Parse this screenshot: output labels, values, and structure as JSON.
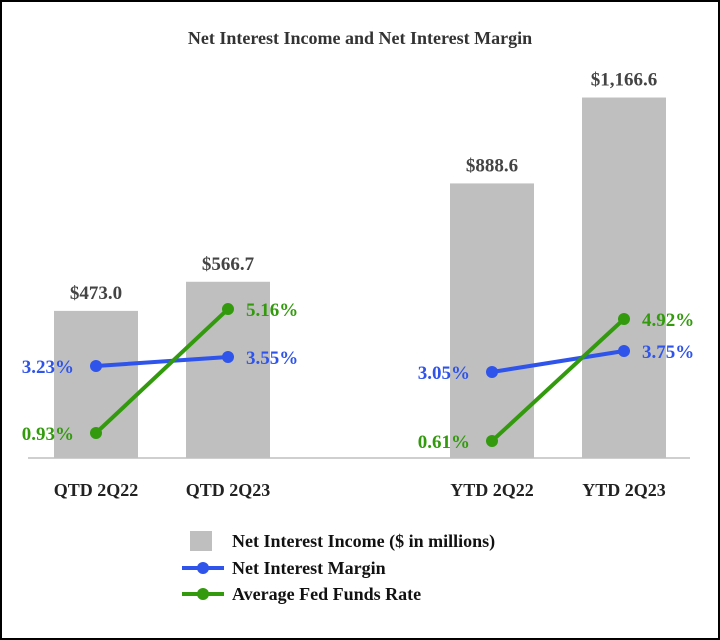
{
  "chart_data": {
    "type": "bar",
    "title": "Net Interest Income and Net Interest Margin",
    "categories": [
      "QTD 2Q22",
      "QTD 2Q23",
      "YTD 2Q22",
      "YTD 2Q23"
    ],
    "groups": [
      [
        "QTD 2Q22",
        "QTD 2Q23"
      ],
      [
        "YTD 2Q22",
        "YTD 2Q23"
      ]
    ],
    "series": [
      {
        "name": "Net Interest Income ($ in millions)",
        "type": "bar",
        "color": "#bfbfbf",
        "values": [
          473.0,
          566.7,
          888.6,
          1166.6
        ],
        "labels": [
          "$473.0",
          "$566.7",
          "$888.6",
          "$1,166.6"
        ]
      },
      {
        "name": "Net Interest Margin",
        "type": "line",
        "color": "#2f54eb",
        "values": [
          3.23,
          3.55,
          3.05,
          3.75
        ],
        "labels": [
          "3.23%",
          "3.55%",
          "3.05%",
          "3.75%"
        ]
      },
      {
        "name": "Average Fed Funds Rate",
        "type": "line",
        "color": "#339a0e",
        "values": [
          0.93,
          5.16,
          0.61,
          4.92
        ],
        "labels": [
          "0.93%",
          "5.16%",
          "0.61%",
          "4.92%"
        ]
      }
    ],
    "legend_position": "bottom",
    "grid": false
  }
}
